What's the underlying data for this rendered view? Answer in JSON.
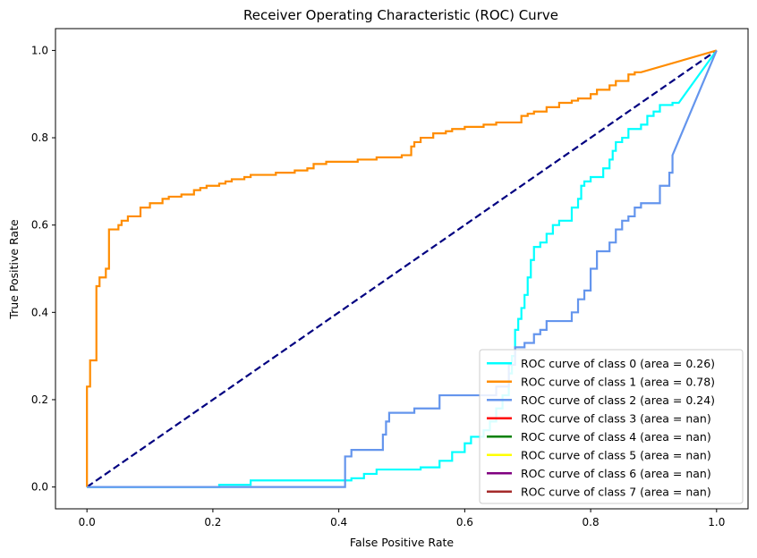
{
  "chart_data": {
    "type": "line",
    "title": "Receiver Operating Characteristic (ROC) Curve",
    "xlabel": "False Positive Rate",
    "ylabel": "True Positive Rate",
    "xlim": [
      -0.05,
      1.05
    ],
    "ylim": [
      -0.05,
      1.05
    ],
    "xticks": [
      0.0,
      0.2,
      0.4,
      0.6,
      0.8,
      1.0
    ],
    "yticks": [
      0.0,
      0.2,
      0.4,
      0.6,
      0.8,
      1.0
    ],
    "xtick_labels": [
      "0.0",
      "0.2",
      "0.4",
      "0.6",
      "0.8",
      "1.0"
    ],
    "ytick_labels": [
      "0.0",
      "0.2",
      "0.4",
      "0.6",
      "0.8",
      "1.0"
    ],
    "grid": false,
    "legend_position": "lower-right",
    "diagonal": {
      "points": [
        [
          0,
          0
        ],
        [
          1,
          1
        ]
      ],
      "color": "#000080",
      "style": "dashed"
    },
    "series": [
      {
        "name": "ROC curve of class 0 (area = 0.26)",
        "color": "#00ffff",
        "points": [
          [
            0,
            0
          ],
          [
            0.21,
            0
          ],
          [
            0.21,
            0.005
          ],
          [
            0.26,
            0.005
          ],
          [
            0.26,
            0.015
          ],
          [
            0.42,
            0.015
          ],
          [
            0.42,
            0.02
          ],
          [
            0.44,
            0.02
          ],
          [
            0.44,
            0.03
          ],
          [
            0.46,
            0.03
          ],
          [
            0.46,
            0.04
          ],
          [
            0.53,
            0.04
          ],
          [
            0.53,
            0.045
          ],
          [
            0.56,
            0.045
          ],
          [
            0.56,
            0.06
          ],
          [
            0.58,
            0.06
          ],
          [
            0.58,
            0.08
          ],
          [
            0.6,
            0.08
          ],
          [
            0.6,
            0.1
          ],
          [
            0.61,
            0.1
          ],
          [
            0.61,
            0.115
          ],
          [
            0.63,
            0.115
          ],
          [
            0.63,
            0.13
          ],
          [
            0.64,
            0.13
          ],
          [
            0.64,
            0.15
          ],
          [
            0.65,
            0.15
          ],
          [
            0.65,
            0.18
          ],
          [
            0.66,
            0.18
          ],
          [
            0.66,
            0.21
          ],
          [
            0.67,
            0.21
          ],
          [
            0.67,
            0.26
          ],
          [
            0.675,
            0.26
          ],
          [
            0.675,
            0.3
          ],
          [
            0.68,
            0.3
          ],
          [
            0.68,
            0.36
          ],
          [
            0.685,
            0.36
          ],
          [
            0.685,
            0.385
          ],
          [
            0.69,
            0.385
          ],
          [
            0.69,
            0.41
          ],
          [
            0.695,
            0.41
          ],
          [
            0.695,
            0.44
          ],
          [
            0.7,
            0.44
          ],
          [
            0.7,
            0.48
          ],
          [
            0.705,
            0.48
          ],
          [
            0.705,
            0.52
          ],
          [
            0.71,
            0.52
          ],
          [
            0.71,
            0.55
          ],
          [
            0.72,
            0.55
          ],
          [
            0.72,
            0.56
          ],
          [
            0.73,
            0.56
          ],
          [
            0.73,
            0.58
          ],
          [
            0.74,
            0.58
          ],
          [
            0.74,
            0.6
          ],
          [
            0.75,
            0.6
          ],
          [
            0.75,
            0.61
          ],
          [
            0.77,
            0.61
          ],
          [
            0.77,
            0.64
          ],
          [
            0.78,
            0.64
          ],
          [
            0.78,
            0.66
          ],
          [
            0.785,
            0.66
          ],
          [
            0.785,
            0.69
          ],
          [
            0.79,
            0.69
          ],
          [
            0.79,
            0.7
          ],
          [
            0.8,
            0.7
          ],
          [
            0.8,
            0.71
          ],
          [
            0.82,
            0.71
          ],
          [
            0.82,
            0.73
          ],
          [
            0.83,
            0.73
          ],
          [
            0.83,
            0.75
          ],
          [
            0.835,
            0.75
          ],
          [
            0.835,
            0.77
          ],
          [
            0.84,
            0.77
          ],
          [
            0.84,
            0.79
          ],
          [
            0.85,
            0.79
          ],
          [
            0.85,
            0.8
          ],
          [
            0.86,
            0.8
          ],
          [
            0.86,
            0.82
          ],
          [
            0.88,
            0.82
          ],
          [
            0.88,
            0.83
          ],
          [
            0.89,
            0.83
          ],
          [
            0.89,
            0.85
          ],
          [
            0.9,
            0.85
          ],
          [
            0.9,
            0.86
          ],
          [
            0.91,
            0.86
          ],
          [
            0.91,
            0.875
          ],
          [
            0.93,
            0.875
          ],
          [
            0.93,
            0.88
          ],
          [
            0.94,
            0.88
          ],
          [
            1.0,
            1.0
          ]
        ]
      },
      {
        "name": "ROC curve of class 1 (area = 0.78)",
        "color": "#ff8c00",
        "points": [
          [
            0,
            0
          ],
          [
            0,
            0.23
          ],
          [
            0.005,
            0.23
          ],
          [
            0.005,
            0.29
          ],
          [
            0.015,
            0.29
          ],
          [
            0.015,
            0.46
          ],
          [
            0.02,
            0.46
          ],
          [
            0.02,
            0.48
          ],
          [
            0.03,
            0.48
          ],
          [
            0.03,
            0.5
          ],
          [
            0.035,
            0.5
          ],
          [
            0.035,
            0.59
          ],
          [
            0.05,
            0.59
          ],
          [
            0.05,
            0.6
          ],
          [
            0.055,
            0.6
          ],
          [
            0.055,
            0.61
          ],
          [
            0.065,
            0.61
          ],
          [
            0.065,
            0.62
          ],
          [
            0.085,
            0.62
          ],
          [
            0.085,
            0.64
          ],
          [
            0.1,
            0.64
          ],
          [
            0.1,
            0.65
          ],
          [
            0.12,
            0.65
          ],
          [
            0.12,
            0.66
          ],
          [
            0.13,
            0.66
          ],
          [
            0.13,
            0.665
          ],
          [
            0.15,
            0.665
          ],
          [
            0.15,
            0.67
          ],
          [
            0.17,
            0.67
          ],
          [
            0.17,
            0.68
          ],
          [
            0.18,
            0.68
          ],
          [
            0.18,
            0.685
          ],
          [
            0.19,
            0.685
          ],
          [
            0.19,
            0.69
          ],
          [
            0.21,
            0.69
          ],
          [
            0.21,
            0.695
          ],
          [
            0.22,
            0.695
          ],
          [
            0.22,
            0.7
          ],
          [
            0.23,
            0.7
          ],
          [
            0.23,
            0.705
          ],
          [
            0.25,
            0.705
          ],
          [
            0.25,
            0.71
          ],
          [
            0.26,
            0.71
          ],
          [
            0.26,
            0.715
          ],
          [
            0.3,
            0.715
          ],
          [
            0.3,
            0.72
          ],
          [
            0.33,
            0.72
          ],
          [
            0.33,
            0.725
          ],
          [
            0.35,
            0.725
          ],
          [
            0.35,
            0.73
          ],
          [
            0.36,
            0.73
          ],
          [
            0.36,
            0.74
          ],
          [
            0.38,
            0.74
          ],
          [
            0.38,
            0.745
          ],
          [
            0.43,
            0.745
          ],
          [
            0.43,
            0.75
          ],
          [
            0.46,
            0.75
          ],
          [
            0.46,
            0.755
          ],
          [
            0.5,
            0.755
          ],
          [
            0.5,
            0.76
          ],
          [
            0.515,
            0.76
          ],
          [
            0.515,
            0.78
          ],
          [
            0.52,
            0.78
          ],
          [
            0.52,
            0.79
          ],
          [
            0.53,
            0.79
          ],
          [
            0.53,
            0.8
          ],
          [
            0.55,
            0.8
          ],
          [
            0.55,
            0.81
          ],
          [
            0.57,
            0.81
          ],
          [
            0.57,
            0.815
          ],
          [
            0.58,
            0.815
          ],
          [
            0.58,
            0.82
          ],
          [
            0.6,
            0.82
          ],
          [
            0.6,
            0.825
          ],
          [
            0.63,
            0.825
          ],
          [
            0.63,
            0.83
          ],
          [
            0.65,
            0.83
          ],
          [
            0.65,
            0.835
          ],
          [
            0.69,
            0.835
          ],
          [
            0.69,
            0.85
          ],
          [
            0.7,
            0.85
          ],
          [
            0.7,
            0.855
          ],
          [
            0.71,
            0.855
          ],
          [
            0.71,
            0.86
          ],
          [
            0.73,
            0.86
          ],
          [
            0.73,
            0.87
          ],
          [
            0.75,
            0.87
          ],
          [
            0.75,
            0.88
          ],
          [
            0.77,
            0.88
          ],
          [
            0.77,
            0.885
          ],
          [
            0.78,
            0.885
          ],
          [
            0.78,
            0.89
          ],
          [
            0.8,
            0.89
          ],
          [
            0.8,
            0.9
          ],
          [
            0.81,
            0.9
          ],
          [
            0.81,
            0.91
          ],
          [
            0.83,
            0.91
          ],
          [
            0.83,
            0.92
          ],
          [
            0.84,
            0.92
          ],
          [
            0.84,
            0.93
          ],
          [
            0.86,
            0.93
          ],
          [
            0.86,
            0.945
          ],
          [
            0.87,
            0.945
          ],
          [
            0.87,
            0.95
          ],
          [
            0.88,
            0.95
          ],
          [
            1.0,
            1.0
          ]
        ]
      },
      {
        "name": "ROC curve of class 2 (area = 0.24)",
        "color": "#6495ed",
        "points": [
          [
            0,
            0
          ],
          [
            0.41,
            0
          ],
          [
            0.41,
            0.07
          ],
          [
            0.42,
            0.07
          ],
          [
            0.42,
            0.085
          ],
          [
            0.47,
            0.085
          ],
          [
            0.47,
            0.12
          ],
          [
            0.475,
            0.12
          ],
          [
            0.475,
            0.15
          ],
          [
            0.48,
            0.15
          ],
          [
            0.48,
            0.17
          ],
          [
            0.52,
            0.17
          ],
          [
            0.52,
            0.18
          ],
          [
            0.56,
            0.18
          ],
          [
            0.56,
            0.21
          ],
          [
            0.65,
            0.21
          ],
          [
            0.65,
            0.23
          ],
          [
            0.67,
            0.23
          ],
          [
            0.67,
            0.28
          ],
          [
            0.68,
            0.28
          ],
          [
            0.68,
            0.32
          ],
          [
            0.695,
            0.32
          ],
          [
            0.695,
            0.33
          ],
          [
            0.71,
            0.33
          ],
          [
            0.71,
            0.35
          ],
          [
            0.72,
            0.35
          ],
          [
            0.72,
            0.36
          ],
          [
            0.73,
            0.36
          ],
          [
            0.73,
            0.38
          ],
          [
            0.77,
            0.38
          ],
          [
            0.77,
            0.4
          ],
          [
            0.78,
            0.4
          ],
          [
            0.78,
            0.43
          ],
          [
            0.79,
            0.43
          ],
          [
            0.79,
            0.45
          ],
          [
            0.8,
            0.45
          ],
          [
            0.8,
            0.5
          ],
          [
            0.81,
            0.5
          ],
          [
            0.81,
            0.54
          ],
          [
            0.83,
            0.54
          ],
          [
            0.83,
            0.56
          ],
          [
            0.84,
            0.56
          ],
          [
            0.84,
            0.59
          ],
          [
            0.85,
            0.59
          ],
          [
            0.85,
            0.61
          ],
          [
            0.86,
            0.61
          ],
          [
            0.86,
            0.62
          ],
          [
            0.87,
            0.62
          ],
          [
            0.87,
            0.64
          ],
          [
            0.88,
            0.64
          ],
          [
            0.88,
            0.65
          ],
          [
            0.91,
            0.65
          ],
          [
            0.91,
            0.69
          ],
          [
            0.925,
            0.69
          ],
          [
            0.925,
            0.72
          ],
          [
            0.93,
            0.72
          ],
          [
            0.93,
            0.76
          ],
          [
            1.0,
            1.0
          ]
        ]
      },
      {
        "name": "ROC curve of class 3 (area = nan)",
        "color": "#ff0000",
        "points": []
      },
      {
        "name": "ROC curve of class 4 (area = nan)",
        "color": "#008000",
        "points": []
      },
      {
        "name": "ROC curve of class 5 (area = nan)",
        "color": "#ffff00",
        "points": []
      },
      {
        "name": "ROC curve of class 6 (area = nan)",
        "color": "#800080",
        "points": []
      },
      {
        "name": "ROC curve of class 7 (area = nan)",
        "color": "#a52a2a",
        "points": []
      }
    ]
  }
}
